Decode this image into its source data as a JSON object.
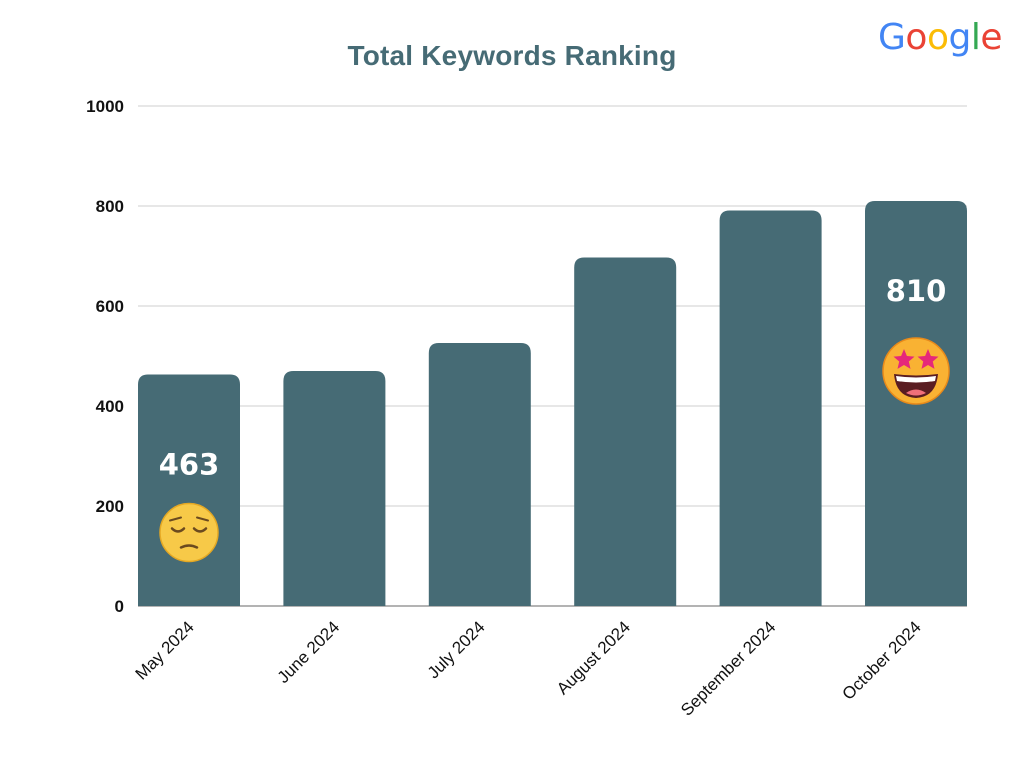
{
  "brand": {
    "logo_name": "google-logo",
    "letters": [
      {
        "char": "G",
        "color": "#4285F4"
      },
      {
        "char": "o",
        "color": "#EA4335"
      },
      {
        "char": "o",
        "color": "#FBBC05"
      },
      {
        "char": "g",
        "color": "#4285F4"
      },
      {
        "char": "l",
        "color": "#34A853"
      },
      {
        "char": "e",
        "color": "#EA4335"
      }
    ]
  },
  "chart_data": {
    "type": "bar",
    "title": "Total Keywords Ranking",
    "categories": [
      "May 2024",
      "June 2024",
      "July 2024",
      "August 2024",
      "September 2024",
      "October 2024"
    ],
    "values": [
      463,
      470,
      526,
      697,
      791,
      810
    ],
    "ylim": [
      0,
      1000
    ],
    "yticks": [
      "0",
      "200",
      "400",
      "600",
      "800",
      "1000"
    ],
    "grid": true,
    "legend": "none",
    "bar_color": "#466b75",
    "data_labels": [
      {
        "category": "May 2024",
        "text": "463",
        "icon": "pensive-face-icon"
      },
      {
        "category": "October 2024",
        "text": "810",
        "icon": "star-struck-face-icon"
      }
    ]
  }
}
